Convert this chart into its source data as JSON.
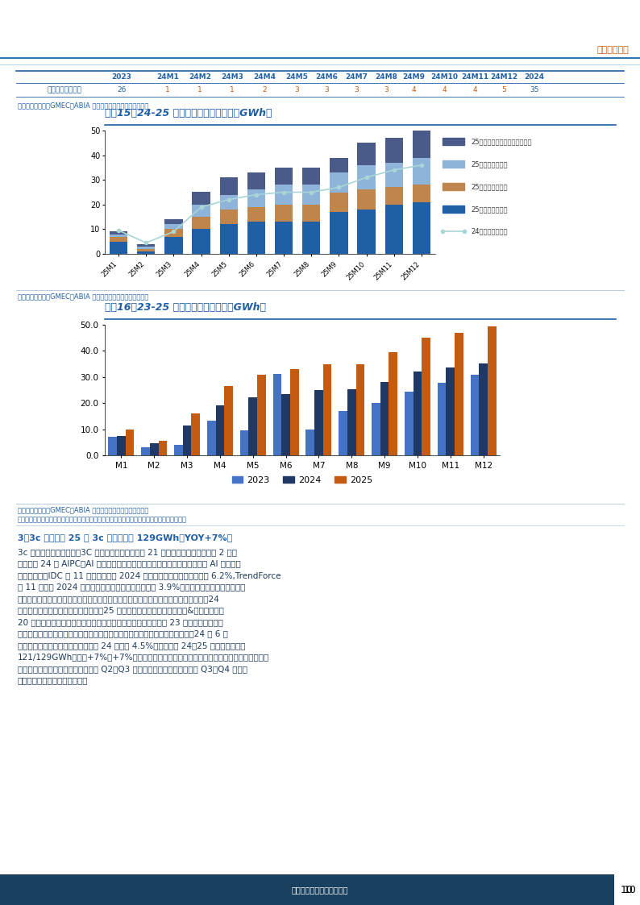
{
  "page_title_right": "行业深度研究",
  "page_num": "10",
  "table_header": [
    "",
    "2023",
    "24M1",
    "24M2",
    "24M3",
    "24M4",
    "24M5",
    "24M6",
    "24M7",
    "24M8",
    "24M9",
    "24M10",
    "24M11",
    "24M12",
    "2024"
  ],
  "table_row_label": "亚非拉等其他地区",
  "table_row_values": [
    26,
    1,
    1,
    1,
    2,
    3,
    3,
    3,
    3,
    4,
    4,
    4,
    5,
    35
  ],
  "table_source": "来源：标准普尔、GMEC、ABIA 公众号等，国金证券研究所测算",
  "chart15_title": "图表15：24-25 年分地区储能需求测算（GWh）",
  "chart15_months": [
    "25M1",
    "25M2",
    "25M3",
    "25M4",
    "25M5",
    "25M6",
    "25M7",
    "25M8",
    "25M9",
    "25M10",
    "25M11",
    "25M12"
  ],
  "chart15_china": [
    5,
    1,
    7,
    10,
    12,
    13,
    13,
    13,
    17,
    18,
    20,
    21
  ],
  "chart15_usa": [
    2,
    1,
    3,
    5,
    6,
    6,
    7,
    7,
    8,
    8,
    7,
    7
  ],
  "chart15_europe": [
    1,
    1,
    2,
    5,
    6,
    7,
    8,
    8,
    8,
    10,
    10,
    11
  ],
  "chart15_other": [
    1,
    1,
    2,
    5,
    7,
    7,
    7,
    7,
    6,
    9,
    10,
    11
  ],
  "chart15_line": [
    9.5,
    4.5,
    9,
    19,
    22,
    24,
    25,
    25,
    27,
    31,
    34,
    36
  ],
  "chart15_color_china": "#1f5fa6",
  "chart15_color_usa": "#c0854a",
  "chart15_color_europe": "#8fb4d9",
  "chart15_color_other": "#4a5b8a",
  "chart15_line_color": "#a8d5d5",
  "chart15_ylim": [
    0,
    50
  ],
  "chart15_yticks": [
    0,
    10,
    20,
    30,
    40,
    50
  ],
  "chart15_source": "来源：标准普尔、GMEC、ABIA 公众号等，国金证券研究所测算",
  "chart15_legend_other": "25年亚非拉等其他地区储能需求",
  "chart15_legend_europe": "25年欧洲储能需求",
  "chart15_legend_usa": "25年美国储能需求",
  "chart15_legend_china": "25年中国储能需求",
  "chart15_legend_line": "24年全球储能需求",
  "chart16_title": "图表16：23-25 年月度储能电池需求（GWh）",
  "chart16_months": [
    "M1",
    "M2",
    "M3",
    "M4",
    "M5",
    "M6",
    "M7",
    "M8",
    "M9",
    "M10",
    "M11",
    "M12"
  ],
  "chart16_2023": [
    7.0,
    3.2,
    4.0,
    13.3,
    9.5,
    31.3,
    9.8,
    17.0,
    20.0,
    24.3,
    27.8,
    31.0
  ],
  "chart16_2024": [
    7.3,
    4.5,
    11.5,
    19.2,
    22.2,
    23.5,
    25.0,
    25.2,
    28.2,
    32.0,
    33.7,
    35.3
  ],
  "chart16_2025": [
    10.0,
    5.5,
    16.0,
    26.5,
    31.0,
    33.0,
    34.8,
    35.0,
    39.5,
    45.0,
    47.0,
    49.5
  ],
  "chart16_color_2023": "#4472c4",
  "chart16_color_2024": "#203864",
  "chart16_color_2025": "#c55a11",
  "chart16_ylim": [
    0,
    50
  ],
  "chart16_yticks": [
    0.0,
    10.0,
    20.0,
    30.0,
    40.0,
    50.0
  ],
  "chart16_source": "来源：标准普尔、GMEC、ABIA 公众号等，国金证券研究所测算",
  "chart16_note": "注：研究员根据历史装机数据系数以及年度预测数据测算月度需求，具体请以实际发生需求为准",
  "chart16_legend": [
    "2023",
    "2024",
    "2025"
  ],
  "body_title": "3、3c 等：预计 25 年 3c 等电池需求 129GWh，YOY+7%。",
  "body_lines": [
    "3c 和电动工具需求复苏。3C 方面，消费电子行业自 21 年高点后，需求已经连续 2 年下",
    "滑，随着 24 年 AIPC、AI 手机推出，有望带来换机潮，销量重拾增长，并且 AI 机型带电",
    "量普遍提升，IDC 在 11 月的报告预计 2024 年全球智能手机出货量将增长 6.2%,TrendForce",
    "在 11 月预计 2024 年全球笔记本电脑出货量同比增长 3.9%；工具电池方面，当前美国已",
    "进入降息周期，有望带动美国地产向上，进而带动电动工具及电池进入景气向上周期，24",
    "年工具电池企业出货迎来翻倍式增长，25 年仍有望维持较高增速；二轮车&平衡车方面，",
    "20 年新国标的推出带动国内电动二轮车销量增速明显提升，预计 23 年及以后国内需求",
    "整体增长平稳，主要为换新需求，海外，东南亚地区电动二轮车有望加速渗透，24 年 6 月",
    "中商情报网预测全球电动二轮车出货 24 年增长 4.5%。我们预测 24、25 年消费电池需求",
    "121/129GWh，同比+7%、+7%（此处仅考虑终端需求变动，但若考虑工具电池补库，实际出",
    "货我们预计更高）。分季度看，一般 Q2、Q3 为电动二轮车的销售旺季，而 Q3、Q4 为消费",
    "电子、电动工具等的销售旺季。"
  ],
  "footer_text": "敬请参阅最后一页特别声明",
  "page_num_text": "10",
  "blue_dark": "#1a4f72",
  "blue_mid": "#2e75b6",
  "blue_light": "#4472c4",
  "orange": "#c55a11",
  "text_blue": "#1f5fa6",
  "footer_bg": "#1a4060"
}
